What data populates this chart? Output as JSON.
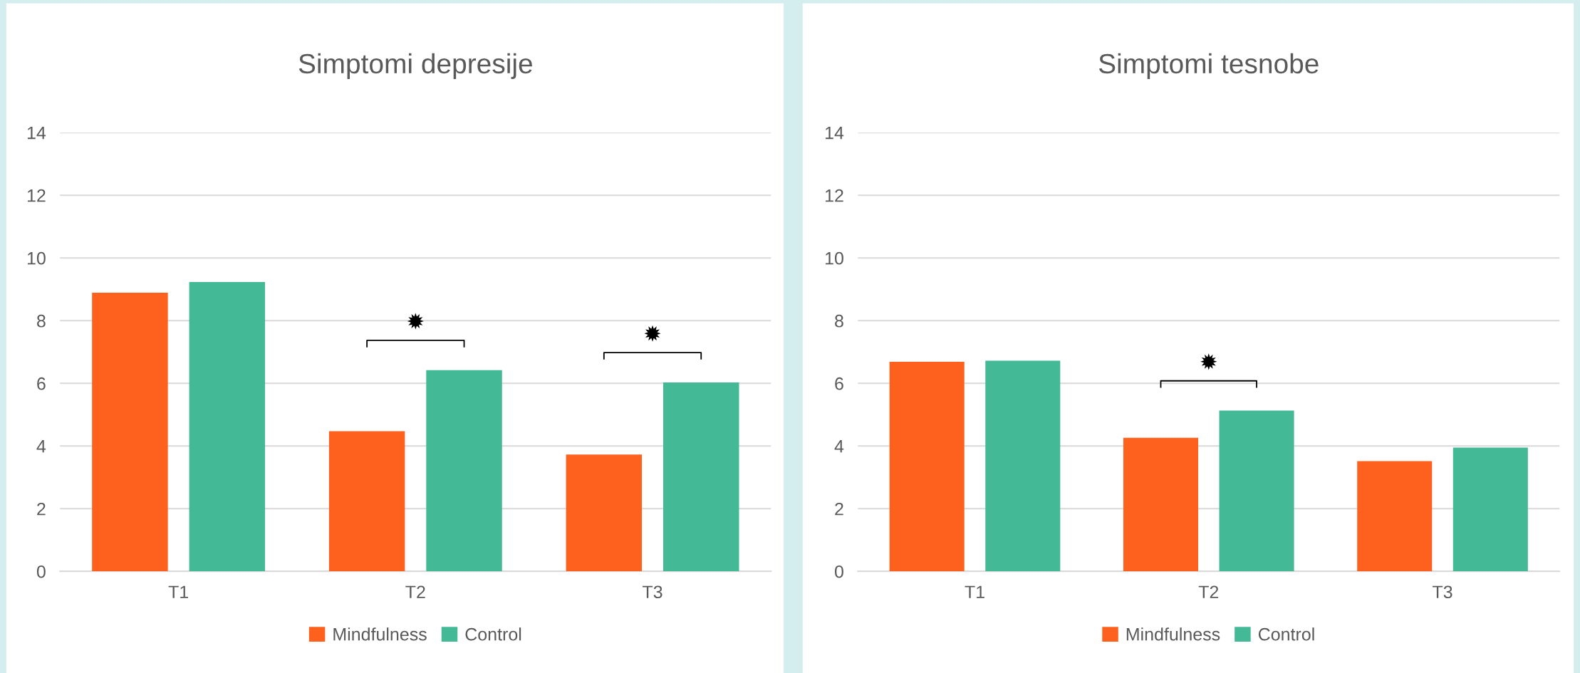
{
  "chart_data": [
    {
      "type": "bar",
      "title": "Simptomi depresije",
      "categories": [
        "T1",
        "T2",
        "T3"
      ],
      "series": [
        {
          "name": "Mindfulness",
          "color": "#fe611d",
          "values": [
            8.89,
            4.47,
            3.73
          ]
        },
        {
          "name": "Control",
          "color": "#43b996",
          "values": [
            9.23,
            6.42,
            6.03
          ]
        }
      ],
      "ylim": [
        0,
        14
      ],
      "yticks": [
        0,
        2,
        4,
        6,
        8,
        10,
        12,
        14
      ],
      "grid": "y",
      "legend": "bottom",
      "annotations": [
        "✹",
        "✹"
      ]
    },
    {
      "type": "bar",
      "title": "Simptomi tesnobe",
      "categories": [
        "T1",
        "T2",
        "T3"
      ],
      "series": [
        {
          "name": "Mindfulness",
          "color": "#fe611d",
          "values": [
            6.69,
            4.26,
            3.52
          ]
        },
        {
          "name": "Control",
          "color": "#43b996",
          "values": [
            6.72,
            5.13,
            3.95
          ]
        }
      ],
      "ylim": [
        0,
        14
      ],
      "yticks": [
        0,
        2,
        4,
        6,
        8,
        10,
        12,
        14
      ],
      "grid": "y",
      "legend": "bottom",
      "annotations": [
        "✹"
      ]
    }
  ]
}
